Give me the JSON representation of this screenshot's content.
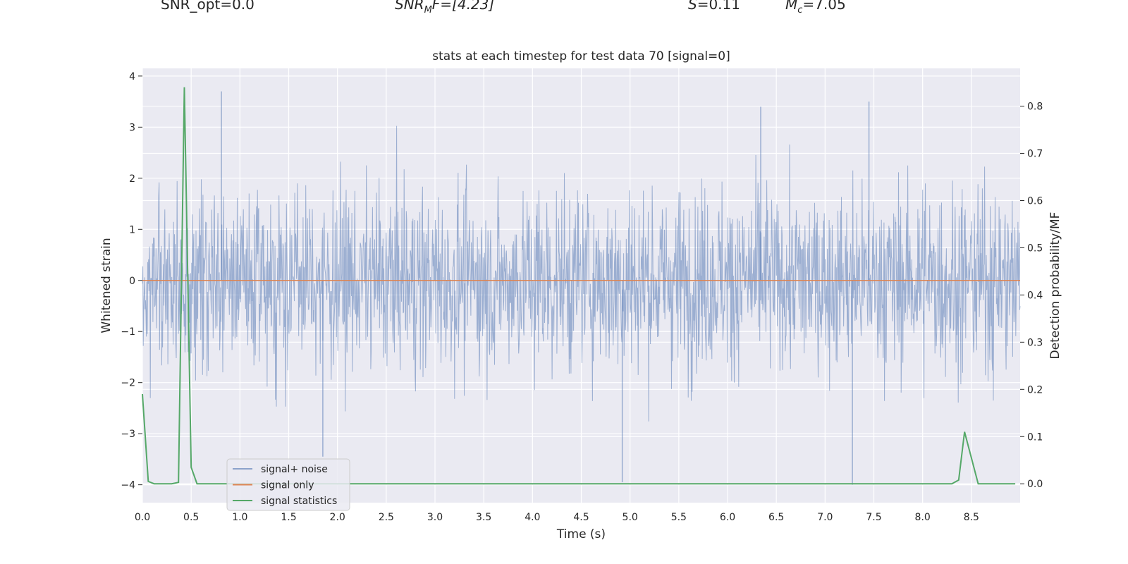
{
  "header": {
    "snr_opt": "SNR_opt=0.0",
    "snr_mf_prefix": "SNR",
    "snr_mf_sub": "M",
    "snr_mf_suffix": "F=[4.23]",
    "s_symbol": "S",
    "s_value": "=0.11",
    "mc_symbol": "M",
    "mc_sub": "c",
    "mc_value": "=7.05"
  },
  "chart_data": {
    "type": "line",
    "title": "stats at each timestep for test data 70 [signal=0]",
    "xlabel": "Time (s)",
    "ylabel": "Whitened strain",
    "y2label": "Detection probability/MF",
    "xlim": [
      0.0,
      9.0
    ],
    "ylim": [
      -4.35,
      4.15
    ],
    "y2lim": [
      -0.04,
      0.88
    ],
    "xticks": [
      "0.0",
      "0.5",
      "1.0",
      "1.5",
      "2.0",
      "2.5",
      "3.0",
      "3.5",
      "4.0",
      "4.5",
      "5.0",
      "5.5",
      "6.0",
      "6.5",
      "7.0",
      "7.5",
      "8.0",
      "8.5"
    ],
    "yticks": [
      "4",
      "3",
      "2",
      "1",
      "0",
      "−1",
      "−2",
      "−3",
      "−4"
    ],
    "y2ticks": [
      "0.8",
      "0.7",
      "0.6",
      "0.5",
      "0.4",
      "0.3",
      "0.2",
      "0.1",
      "0.0"
    ],
    "grid": true,
    "legend_position": "lower-left",
    "series": [
      {
        "name": "signal+ noise",
        "color": "#4c72b0",
        "axis": "left",
        "description_values": "whitened strain noise fluctuating roughly between -4 and 3.7, mostly within -2.5..2.5",
        "notable_peaks": [
          [
            0.81,
            3.7
          ],
          [
            1.85,
            -3.45
          ],
          [
            4.92,
            -3.95
          ],
          [
            7.28,
            -4.0
          ],
          [
            7.45,
            3.5
          ],
          [
            6.34,
            3.4
          ]
        ]
      },
      {
        "name": "signal only",
        "color": "#dd8452",
        "axis": "left",
        "x": [
          0.0,
          9.0
        ],
        "y": [
          0.0,
          0.0
        ]
      },
      {
        "name": "signal statistics",
        "color": "#55a868",
        "axis": "right",
        "x": [
          0.0,
          0.06,
          0.12,
          0.3,
          0.37,
          0.43,
          0.5,
          0.56,
          8.3,
          8.37,
          8.43,
          8.57,
          8.95
        ],
        "y": [
          0.19,
          0.005,
          0.0,
          0.0,
          0.003,
          0.84,
          0.035,
          0.0,
          0.0,
          0.008,
          0.11,
          0.0,
          0.0
        ]
      }
    ]
  }
}
